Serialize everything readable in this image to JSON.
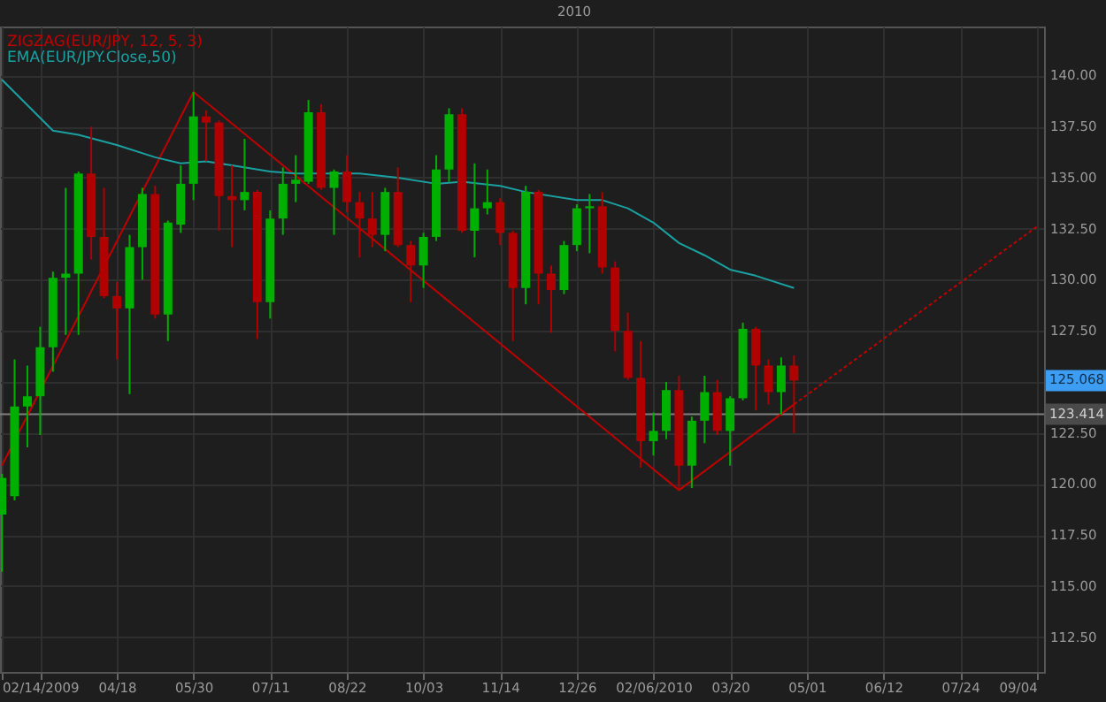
{
  "chart_data": {
    "type": "candlestick",
    "x": [
      "2009-02-14",
      "2009-02-21",
      "2009-02-28",
      "2009-03-07",
      "2009-03-14",
      "2009-03-21",
      "2009-03-28",
      "2009-04-04",
      "2009-04-11",
      "2009-04-18",
      "2009-04-25",
      "2009-05-02",
      "2009-05-09",
      "2009-05-16",
      "2009-05-23",
      "2009-05-30",
      "2009-06-06",
      "2009-06-13",
      "2009-06-20",
      "2009-06-27",
      "2009-07-04",
      "2009-07-11",
      "2009-07-18",
      "2009-07-25",
      "2009-08-01",
      "2009-08-08",
      "2009-08-15",
      "2009-08-22",
      "2009-08-29",
      "2009-09-05",
      "2009-09-12",
      "2009-09-19",
      "2009-09-26",
      "2009-10-03",
      "2009-10-10",
      "2009-10-17",
      "2009-10-24",
      "2009-10-31",
      "2009-11-07",
      "2009-11-14",
      "2009-11-21",
      "2009-11-28",
      "2009-12-05",
      "2009-12-12",
      "2009-12-19",
      "2009-12-26",
      "2010-01-02",
      "2010-01-09",
      "2010-01-16",
      "2010-01-23",
      "2010-01-30",
      "2010-02-06",
      "2010-02-13",
      "2010-02-20",
      "2010-02-27",
      "2010-03-06",
      "2010-03-13",
      "2010-03-20",
      "2010-03-27",
      "2010-04-03",
      "2010-04-10",
      "2010-04-17",
      "2010-04-24"
    ],
    "ohlc": [
      [
        118.5,
        120.5,
        115.7,
        120.3
      ],
      [
        119.4,
        126.1,
        119.2,
        123.8
      ],
      [
        123.8,
        125.8,
        121.8,
        124.3
      ],
      [
        124.3,
        127.7,
        122.4,
        126.7
      ],
      [
        126.7,
        130.4,
        125.5,
        130.1
      ],
      [
        130.1,
        134.5,
        127.3,
        130.3
      ],
      [
        130.3,
        135.3,
        127.3,
        135.2
      ],
      [
        135.2,
        137.5,
        131.0,
        132.1
      ],
      [
        132.1,
        134.5,
        129.1,
        129.2
      ],
      [
        129.2,
        129.9,
        126.1,
        128.6
      ],
      [
        128.6,
        132.2,
        124.4,
        131.6
      ],
      [
        131.6,
        134.5,
        130.0,
        134.2
      ],
      [
        134.2,
        134.6,
        128.1,
        128.3
      ],
      [
        128.3,
        132.9,
        127.0,
        132.8
      ],
      [
        132.7,
        135.6,
        132.3,
        134.7
      ],
      [
        134.7,
        139.2,
        133.9,
        138.0
      ],
      [
        138.0,
        138.3,
        135.8,
        137.7
      ],
      [
        137.7,
        137.8,
        132.4,
        134.1
      ],
      [
        134.1,
        135.6,
        131.6,
        133.9
      ],
      [
        133.9,
        136.9,
        133.4,
        134.3
      ],
      [
        134.3,
        134.4,
        127.1,
        128.9
      ],
      [
        128.9,
        133.4,
        128.1,
        133.0
      ],
      [
        133.0,
        135.5,
        132.2,
        134.7
      ],
      [
        134.7,
        136.1,
        133.8,
        134.9
      ],
      [
        134.8,
        138.8,
        134.7,
        138.2
      ],
      [
        138.2,
        138.6,
        134.4,
        134.5
      ],
      [
        134.5,
        135.4,
        132.2,
        135.3
      ],
      [
        135.3,
        136.1,
        133.3,
        133.8
      ],
      [
        133.8,
        134.3,
        131.1,
        133.0
      ],
      [
        133.0,
        134.3,
        131.6,
        132.2
      ],
      [
        132.2,
        134.5,
        131.4,
        134.3
      ],
      [
        134.3,
        135.5,
        131.6,
        131.7
      ],
      [
        131.7,
        131.9,
        128.9,
        130.7
      ],
      [
        130.7,
        132.3,
        129.6,
        132.1
      ],
      [
        132.1,
        136.1,
        131.9,
        135.4
      ],
      [
        135.4,
        138.4,
        134.8,
        138.1
      ],
      [
        138.1,
        138.4,
        132.3,
        132.4
      ],
      [
        132.4,
        135.7,
        131.1,
        133.5
      ],
      [
        133.5,
        135.4,
        133.2,
        133.8
      ],
      [
        133.8,
        134.0,
        131.7,
        132.3
      ],
      [
        132.3,
        132.4,
        127.0,
        129.6
      ],
      [
        129.6,
        134.6,
        128.8,
        134.3
      ],
      [
        134.3,
        134.4,
        128.8,
        130.3
      ],
      [
        130.3,
        130.7,
        127.4,
        129.5
      ],
      [
        129.5,
        131.9,
        129.3,
        131.7
      ],
      [
        131.7,
        133.7,
        131.4,
        133.5
      ],
      [
        133.5,
        134.2,
        131.3,
        133.6
      ],
      [
        133.6,
        134.3,
        130.3,
        130.6
      ],
      [
        130.6,
        130.9,
        126.5,
        127.5
      ],
      [
        127.5,
        128.4,
        125.1,
        125.2
      ],
      [
        125.2,
        127.0,
        120.8,
        122.1
      ],
      [
        122.1,
        123.5,
        121.4,
        122.6
      ],
      [
        122.6,
        125.0,
        122.2,
        124.6
      ],
      [
        124.6,
        125.3,
        119.7,
        120.9
      ],
      [
        120.9,
        123.3,
        119.8,
        123.1
      ],
      [
        123.1,
        125.3,
        122.0,
        124.5
      ],
      [
        124.5,
        125.1,
        122.4,
        122.6
      ],
      [
        122.6,
        124.3,
        120.9,
        124.2
      ],
      [
        124.2,
        127.9,
        124.1,
        127.6
      ],
      [
        127.6,
        127.7,
        123.6,
        125.8
      ],
      [
        125.8,
        126.1,
        123.9,
        124.5
      ],
      [
        124.5,
        126.2,
        123.4,
        125.8
      ],
      [
        125.8,
        126.3,
        122.5,
        125.068
      ]
    ],
    "colors": [
      "#00b000",
      "#00b000",
      "#00b000",
      "#00b000",
      "#00b000",
      "#00b000",
      "#00b000",
      "#b00000",
      "#b00000",
      "#b00000",
      "#00b000",
      "#00b000",
      "#b00000",
      "#00b000",
      "#00b000",
      "#00b000",
      "#b00000",
      "#b00000",
      "#b00000",
      "#00b000",
      "#b00000",
      "#00b000",
      "#00b000",
      "#00b000",
      "#00b000",
      "#b00000",
      "#00b000",
      "#b00000",
      "#b00000",
      "#b00000",
      "#00b000",
      "#b00000",
      "#b00000",
      "#00b000",
      "#00b000",
      "#00b000",
      "#b00000",
      "#00b000",
      "#00b000",
      "#b00000",
      "#b00000",
      "#00b000",
      "#b00000",
      "#b00000",
      "#00b000",
      "#00b000",
      "#00b000",
      "#b00000",
      "#b00000",
      "#b00000",
      "#b00000",
      "#00b000",
      "#00b000",
      "#b00000",
      "#00b000",
      "#00b000",
      "#b00000",
      "#00b000",
      "#00b000",
      "#b00000",
      "#b00000",
      "#00b000",
      "#b00000"
    ],
    "series": [
      {
        "name": "ZIGZAG(EUR/JPY, 12, 5, 3)",
        "type": "line",
        "color": "#c00000",
        "line_style": "solid",
        "x": [
          "2009-02-14",
          "2009-05-30",
          "2010-02-20",
          "2010-04-24"
        ],
        "values": [
          120.9,
          139.2,
          119.7,
          123.9
        ]
      },
      {
        "type": "line",
        "color": "#c00000",
        "line_style": "dotted",
        "x": [
          "2010-04-24",
          "2010-09-04"
        ],
        "values": [
          123.9,
          132.6
        ]
      },
      {
        "name": "EMA(EUR/JPY.Close,50)",
        "type": "line",
        "color": "#1aa0a0",
        "line_style": "solid",
        "x": [
          "2009-02-14",
          "2009-03-14",
          "2009-03-28",
          "2009-04-18",
          "2009-05-09",
          "2009-05-23",
          "2009-06-06",
          "2009-06-20",
          "2009-07-11",
          "2009-07-25",
          "2009-08-29",
          "2009-09-19",
          "2009-10-10",
          "2009-10-24",
          "2009-11-14",
          "2009-11-28",
          "2009-12-26",
          "2010-01-09",
          "2010-01-23",
          "2010-02-06",
          "2010-02-20",
          "2010-03-06",
          "2010-03-20",
          "2010-04-03",
          "2010-04-24"
        ],
        "values": [
          139.8,
          137.3,
          137.1,
          136.6,
          136.0,
          135.7,
          135.8,
          135.6,
          135.3,
          135.2,
          135.2,
          135.0,
          134.7,
          134.8,
          134.6,
          134.3,
          133.9,
          133.9,
          133.5,
          132.8,
          131.8,
          131.2,
          130.5,
          130.2,
          129.6
        ]
      }
    ],
    "xlim": [
      "2009-02-13",
      "2010-09-08"
    ],
    "xticks": [
      {
        "value": "2009-02-14",
        "label": "02/14/2009"
      },
      {
        "value": "2009-03-07",
        "label": null
      },
      {
        "value": "2009-04-18",
        "label": "04/18"
      },
      {
        "value": "2009-05-30",
        "label": "05/30"
      },
      {
        "value": "2009-07-11",
        "label": "07/11"
      },
      {
        "value": "2009-08-22",
        "label": "08/22"
      },
      {
        "value": "2009-10-03",
        "label": "10/03"
      },
      {
        "value": "2009-11-14",
        "label": "11/14"
      },
      {
        "value": "2009-12-26",
        "label": "12/26"
      },
      {
        "value": "2010-02-06",
        "label": "02/06/2010"
      },
      {
        "value": "2010-03-20",
        "label": "03/20"
      },
      {
        "value": "2010-05-01",
        "label": "05/01"
      },
      {
        "value": "2010-06-12",
        "label": "06/12"
      },
      {
        "value": "2010-07-24",
        "label": "07/24"
      },
      {
        "value": "2010-09-04",
        "label": "09/04"
      }
    ],
    "ylim": [
      110.8,
      142.4
    ],
    "yticks": [
      {
        "value": 112.5,
        "label": "112.50"
      },
      {
        "value": 115,
        "label": "115.00"
      },
      {
        "value": 117.5,
        "label": "117.50"
      },
      {
        "value": 120,
        "label": "120.00"
      },
      {
        "value": 122.5,
        "label": "122.50"
      },
      {
        "value": 125,
        "label": null
      },
      {
        "value": 127.5,
        "label": "127.50"
      },
      {
        "value": 130,
        "label": "130.00"
      },
      {
        "value": 132.5,
        "label": "132.50"
      },
      {
        "value": 135,
        "label": "135.00"
      },
      {
        "value": 137.5,
        "label": "137.50"
      },
      {
        "value": 140,
        "label": "140.00"
      }
    ],
    "ref_lines": [
      {
        "axis": "y",
        "value": 123.414,
        "label": "123.414",
        "color": "#808080"
      }
    ],
    "annotations": [
      "125.068",
      "2010"
    ],
    "grid": true,
    "legend": "top left"
  }
}
